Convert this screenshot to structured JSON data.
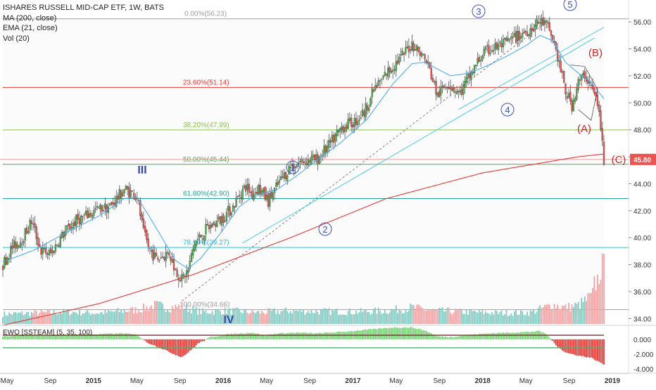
{
  "chart_data": {
    "type": "candlestick",
    "legend": {
      "title": "ISHARES RUSSELL MID-CAP ETF, 1W, BATS",
      "ma": "MA (200, close)",
      "ema": "EMA (21, close)",
      "vol": "Vol (20)"
    },
    "price_axis": {
      "ticks": [
        "56.00",
        "54.00",
        "52.00",
        "50.00",
        "48.00",
        "46.00",
        "44.00",
        "42.00",
        "40.00",
        "38.00",
        "36.00",
        "34.00"
      ],
      "range": [
        33.6,
        57.1
      ],
      "last_price": "45.80",
      "last_price_color": "#ef5350"
    },
    "oscillator": {
      "title": "EWO [SSTEAM] (5, 35, 100)",
      "ticks": [
        "0.000",
        "-2.000",
        "-4.000"
      ],
      "range": [
        -4.2,
        1.6
      ]
    },
    "time_axis": [
      "May",
      "Sep",
      "2015",
      "May",
      "Sep",
      "2016",
      "May",
      "Sep",
      "2017",
      "May",
      "Sep",
      "2018",
      "May",
      "Sep",
      "2019"
    ],
    "series_anchors": {
      "close": [
        [
          0,
          38.0
        ],
        [
          6,
          39.3
        ],
        [
          12,
          39.9
        ],
        [
          18,
          41.2
        ],
        [
          24,
          39.0
        ],
        [
          30,
          38.8
        ],
        [
          38,
          40.3
        ],
        [
          46,
          41.3
        ],
        [
          52,
          41.6
        ],
        [
          60,
          42.1
        ],
        [
          68,
          42.4
        ],
        [
          76,
          43.6
        ],
        [
          84,
          43.1
        ],
        [
          88,
          40.3
        ],
        [
          92,
          39.1
        ],
        [
          96,
          38.4
        ],
        [
          104,
          38.9
        ],
        [
          108,
          37.6
        ],
        [
          112,
          36.9
        ],
        [
          116,
          37.6
        ],
        [
          120,
          39.6
        ],
        [
          128,
          40.7
        ],
        [
          136,
          41.3
        ],
        [
          144,
          42.3
        ],
        [
          148,
          43.2
        ],
        [
          152,
          43.8
        ],
        [
          156,
          43.2
        ],
        [
          160,
          43.7
        ],
        [
          166,
          42.7
        ],
        [
          172,
          43.9
        ],
        [
          180,
          45.3
        ],
        [
          188,
          45.7
        ],
        [
          196,
          45.8
        ],
        [
          204,
          46.8
        ],
        [
          212,
          48.2
        ],
        [
          220,
          48.6
        ],
        [
          226,
          49.3
        ],
        [
          232,
          50.9
        ],
        [
          240,
          52.2
        ],
        [
          248,
          53.2
        ],
        [
          256,
          54.4
        ],
        [
          262,
          53.6
        ],
        [
          266,
          52.8
        ],
        [
          272,
          50.5
        ],
        [
          278,
          51.5
        ],
        [
          286,
          50.7
        ],
        [
          292,
          52.0
        ],
        [
          300,
          53.6
        ],
        [
          306,
          54.0
        ],
        [
          314,
          54.4
        ],
        [
          322,
          54.9
        ],
        [
          330,
          55.5
        ],
        [
          336,
          56.0
        ],
        [
          340,
          55.8
        ],
        [
          344,
          54.8
        ],
        [
          348,
          52.9
        ],
        [
          352,
          50.8
        ],
        [
          356,
          49.8
        ],
        [
          360,
          51.5
        ],
        [
          364,
          52.1
        ],
        [
          368,
          51.2
        ],
        [
          372,
          50.0
        ],
        [
          374,
          48.1
        ],
        [
          376,
          45.8
        ]
      ],
      "ma200": [
        [
          0,
          33.5
        ],
        [
          60,
          35.1
        ],
        [
          120,
          37.3
        ],
        [
          180,
          40.0
        ],
        [
          240,
          42.9
        ],
        [
          300,
          44.8
        ],
        [
          340,
          45.6
        ],
        [
          360,
          46.0
        ],
        [
          376,
          46.2
        ]
      ],
      "ema21": [
        [
          0,
          38.2
        ],
        [
          20,
          39.1
        ],
        [
          40,
          40.4
        ],
        [
          60,
          41.6
        ],
        [
          76,
          42.9
        ],
        [
          84,
          43.0
        ],
        [
          92,
          41.5
        ],
        [
          100,
          39.9
        ],
        [
          108,
          38.3
        ],
        [
          116,
          37.7
        ],
        [
          124,
          38.5
        ],
        [
          136,
          40.3
        ],
        [
          148,
          42.3
        ],
        [
          156,
          43.0
        ],
        [
          164,
          43.3
        ],
        [
          172,
          43.6
        ],
        [
          184,
          44.6
        ],
        [
          196,
          45.7
        ],
        [
          212,
          47.1
        ],
        [
          228,
          48.8
        ],
        [
          244,
          51.4
        ],
        [
          256,
          52.9
        ],
        [
          264,
          53.0
        ],
        [
          272,
          52.5
        ],
        [
          280,
          52.0
        ],
        [
          292,
          52.2
        ],
        [
          304,
          52.8
        ],
        [
          316,
          53.5
        ],
        [
          328,
          54.3
        ],
        [
          336,
          55.0
        ],
        [
          344,
          54.6
        ],
        [
          352,
          53.0
        ],
        [
          360,
          52.2
        ],
        [
          368,
          51.5
        ],
        [
          376,
          50.3
        ]
      ],
      "ewo": [
        [
          0,
          0.4
        ],
        [
          18,
          0.6
        ],
        [
          30,
          0.5
        ],
        [
          44,
          0.6
        ],
        [
          60,
          0.7
        ],
        [
          76,
          0.8
        ],
        [
          84,
          0.6
        ],
        [
          90,
          -0.4
        ],
        [
          100,
          -1.3
        ],
        [
          108,
          -2.1
        ],
        [
          112,
          -2.4
        ],
        [
          116,
          -1.8
        ],
        [
          122,
          -0.6
        ],
        [
          130,
          0.3
        ],
        [
          142,
          0.7
        ],
        [
          156,
          0.9
        ],
        [
          164,
          0.5
        ],
        [
          172,
          0.8
        ],
        [
          184,
          0.9
        ],
        [
          196,
          0.8
        ],
        [
          212,
          1.0
        ],
        [
          228,
          1.3
        ],
        [
          244,
          1.6
        ],
        [
          256,
          1.6
        ],
        [
          264,
          1.2
        ],
        [
          272,
          0.4
        ],
        [
          280,
          0.3
        ],
        [
          292,
          0.6
        ],
        [
          304,
          0.8
        ],
        [
          316,
          0.9
        ],
        [
          328,
          1.0
        ],
        [
          336,
          1.1
        ],
        [
          340,
          0.7
        ],
        [
          346,
          -0.8
        ],
        [
          352,
          -1.8
        ],
        [
          360,
          -2.2
        ],
        [
          368,
          -2.5
        ],
        [
          376,
          -3.4
        ]
      ]
    },
    "volume_anchors": [
      [
        0,
        0.18
      ],
      [
        20,
        0.2
      ],
      [
        40,
        0.22
      ],
      [
        60,
        0.2
      ],
      [
        84,
        0.26
      ],
      [
        96,
        0.34
      ],
      [
        104,
        0.3
      ],
      [
        112,
        0.32
      ],
      [
        124,
        0.22
      ],
      [
        140,
        0.24
      ],
      [
        160,
        0.21
      ],
      [
        180,
        0.24
      ],
      [
        200,
        0.23
      ],
      [
        220,
        0.22
      ],
      [
        240,
        0.24
      ],
      [
        256,
        0.3
      ],
      [
        270,
        0.24
      ],
      [
        290,
        0.22
      ],
      [
        310,
        0.2
      ],
      [
        330,
        0.21
      ],
      [
        344,
        0.35
      ],
      [
        352,
        0.3
      ],
      [
        360,
        0.34
      ],
      [
        368,
        0.5
      ],
      [
        372,
        0.62
      ],
      [
        376,
        1.0
      ]
    ],
    "volume_up_color": "#85c9c2",
    "volume_down_color": "#f3a3a3",
    "up_color": "#4caf50",
    "down_color": "#ef5350",
    "ma_color": "#e53935",
    "ema_color": "#42a5f5",
    "fib_levels": [
      {
        "label": "0.00%(56.23)",
        "price": 56.23,
        "color": "#9e9e9e"
      },
      {
        "label": "23.60%(51.14)",
        "price": 51.14,
        "color": "#e53935"
      },
      {
        "label": "38.20%(47.99)",
        "price": 47.99,
        "color": "#8bc34a"
      },
      {
        "label": "50.00%(45.44)",
        "price": 45.44,
        "color": "#4caf50"
      },
      {
        "label": "61.80%(42.90)",
        "price": 42.9,
        "color": "#26a69a"
      },
      {
        "label": "78.60%(39.27)",
        "price": 39.27,
        "color": "#26c6da"
      },
      {
        "label": "100.00%(34.66)",
        "price": 34.66,
        "color": "#9e9e9e"
      }
    ],
    "wave_labels": [
      {
        "text": "III",
        "style": "roman",
        "color": "#3949ab"
      },
      {
        "text": "IV",
        "style": "roman",
        "color": "#3949ab"
      },
      {
        "text": "1",
        "style": "circle",
        "color": "#3f51b5"
      },
      {
        "text": "2",
        "style": "circle",
        "color": "#3f51b5"
      },
      {
        "text": "3",
        "style": "circle",
        "color": "#3f51b5"
      },
      {
        "text": "4",
        "style": "circle",
        "color": "#3f51b5"
      },
      {
        "text": "5",
        "style": "circle",
        "color": "#3f51b5"
      },
      {
        "text": "(A)",
        "style": "paren",
        "color": "#c62828"
      },
      {
        "text": "(B)",
        "style": "paren",
        "color": "#c62828"
      },
      {
        "text": "(C)",
        "style": "paren",
        "color": "#c62828"
      }
    ],
    "ewo_up_color": "#76d275",
    "ewo_down_color": "#e53935",
    "ewo_line1_color": "#7b2d2d",
    "ewo_line2_color": "#2e7d32",
    "ewo_line3_color": "#69f0ae"
  }
}
